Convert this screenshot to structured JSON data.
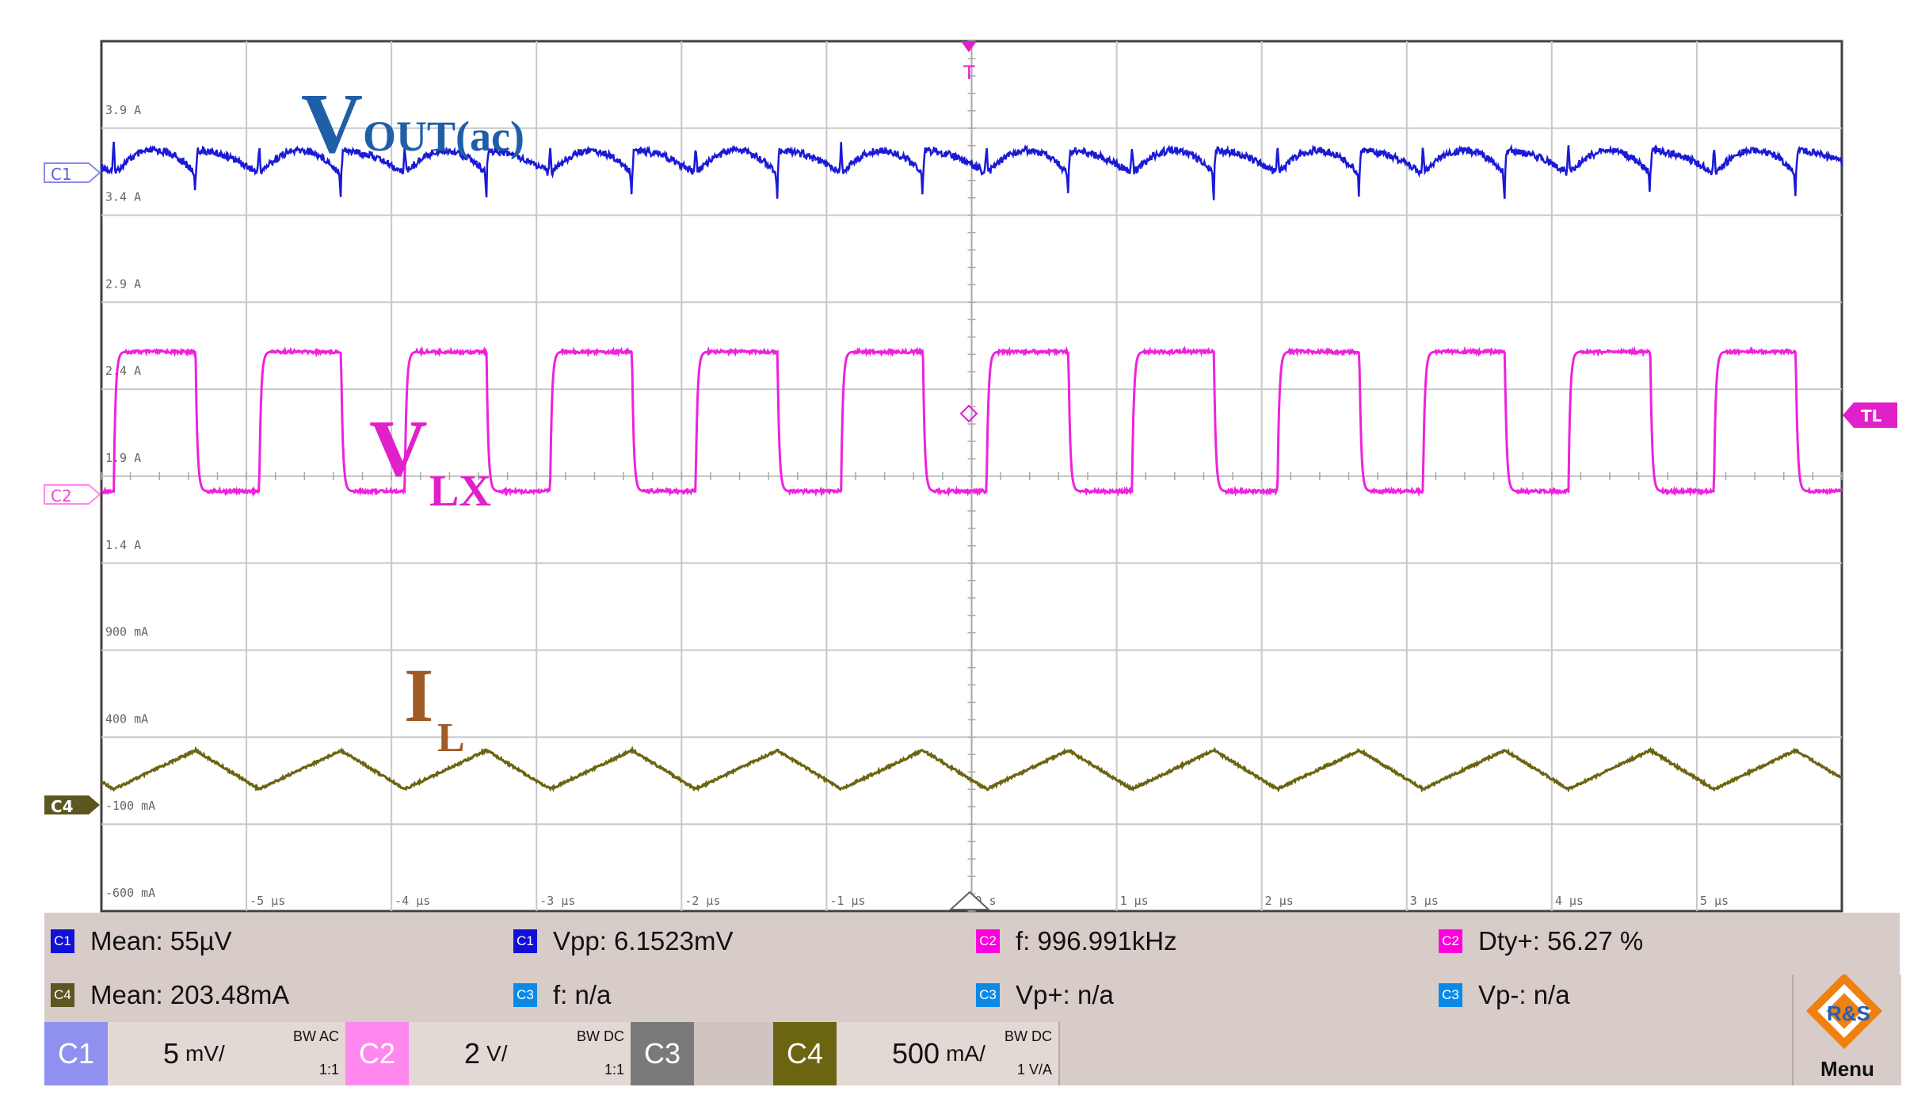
{
  "colors": {
    "ch1": "#1a1ad6",
    "ch2": "#ee22dd",
    "ch4": "#6b6410",
    "grid": "#c8c8c8",
    "annot_vout": "#1f5fa8",
    "annot_vlx": "#e020c8",
    "annot_il": "#a05a28",
    "trigger": "#e020c8",
    "measure_bg": "#d8ccc8",
    "badge_c1": "#1010d8",
    "badge_c2": "#ff00dd",
    "badge_c3": "#0a8ae8",
    "badge_c4": "#5c5620"
  },
  "screen": {
    "y_labels": [
      "3.9 A",
      "3.4 A",
      "2.9 A",
      "2.4 A",
      "1.9 A",
      "1.4 A",
      "900 mA",
      "400 mA",
      "-100 mA",
      "-600 mA"
    ],
    "x_labels": [
      "-5 µs",
      "-4 µs",
      "-3 µs",
      "-2 µs",
      "-1 µs",
      "0 s",
      "1 µs",
      "2 µs",
      "3 µs",
      "4 µs",
      "5 µs"
    ],
    "channel_markers": {
      "c1": "C1",
      "c2": "C2",
      "c4": "C4"
    },
    "trigger_marker": "T",
    "trigger_level": "TL"
  },
  "annotations": {
    "vout_main": "V",
    "vout_sub": "OUT(ac)",
    "vlx_main": "V",
    "vlx_sub": "LX",
    "il_main": "I",
    "il_sub": "L"
  },
  "waveforms": {
    "time_per_div_us": 1,
    "period_us": 1.003,
    "ch2_duty": 0.5627,
    "ch1_mid_mV": 0,
    "ch1_vpp_mV": 6.15,
    "ch4_min_mA": 0,
    "ch4_max_mA": 400
  },
  "measurements": [
    {
      "badge": "C1",
      "badge_color": "c1",
      "text": "Mean: 55µV"
    },
    {
      "badge": "C1",
      "badge_color": "c1",
      "text": "Vpp: 6.1523mV"
    },
    {
      "badge": "C2",
      "badge_color": "c2",
      "text": "f: 996.991kHz"
    },
    {
      "badge": "C2",
      "badge_color": "c2",
      "text": "Dty+: 56.27 %"
    },
    {
      "badge": "C4",
      "badge_color": "c4",
      "text": "Mean: 203.48mA"
    },
    {
      "badge": "C3",
      "badge_color": "c3",
      "text": "f: n/a"
    },
    {
      "badge": "C3",
      "badge_color": "c3",
      "text": "Vp+: n/a"
    },
    {
      "badge": "C3",
      "badge_color": "c3",
      "text": "Vp-: n/a"
    }
  ],
  "channels": [
    {
      "tab": "C1",
      "scale_num": "5",
      "scale_unit": "mV/",
      "bw": "BW AC",
      "ratio": "1:1",
      "tab_color": "#9090f0"
    },
    {
      "tab": "C2",
      "scale_num": "2",
      "scale_unit": "V/",
      "bw": "BW DC",
      "ratio": "1:1",
      "tab_color": "#ff88ee"
    },
    {
      "tab": "C3",
      "scale_num": "",
      "scale_unit": "",
      "bw": "",
      "ratio": "",
      "tab_color": "#7a7a7a"
    },
    {
      "tab": "C4",
      "scale_num": "500",
      "scale_unit": "mA/",
      "bw": "BW DC",
      "ratio": "1 V/A",
      "tab_color": "#6b6410"
    }
  ],
  "menu": {
    "label": "Menu",
    "logo": "R&S"
  }
}
